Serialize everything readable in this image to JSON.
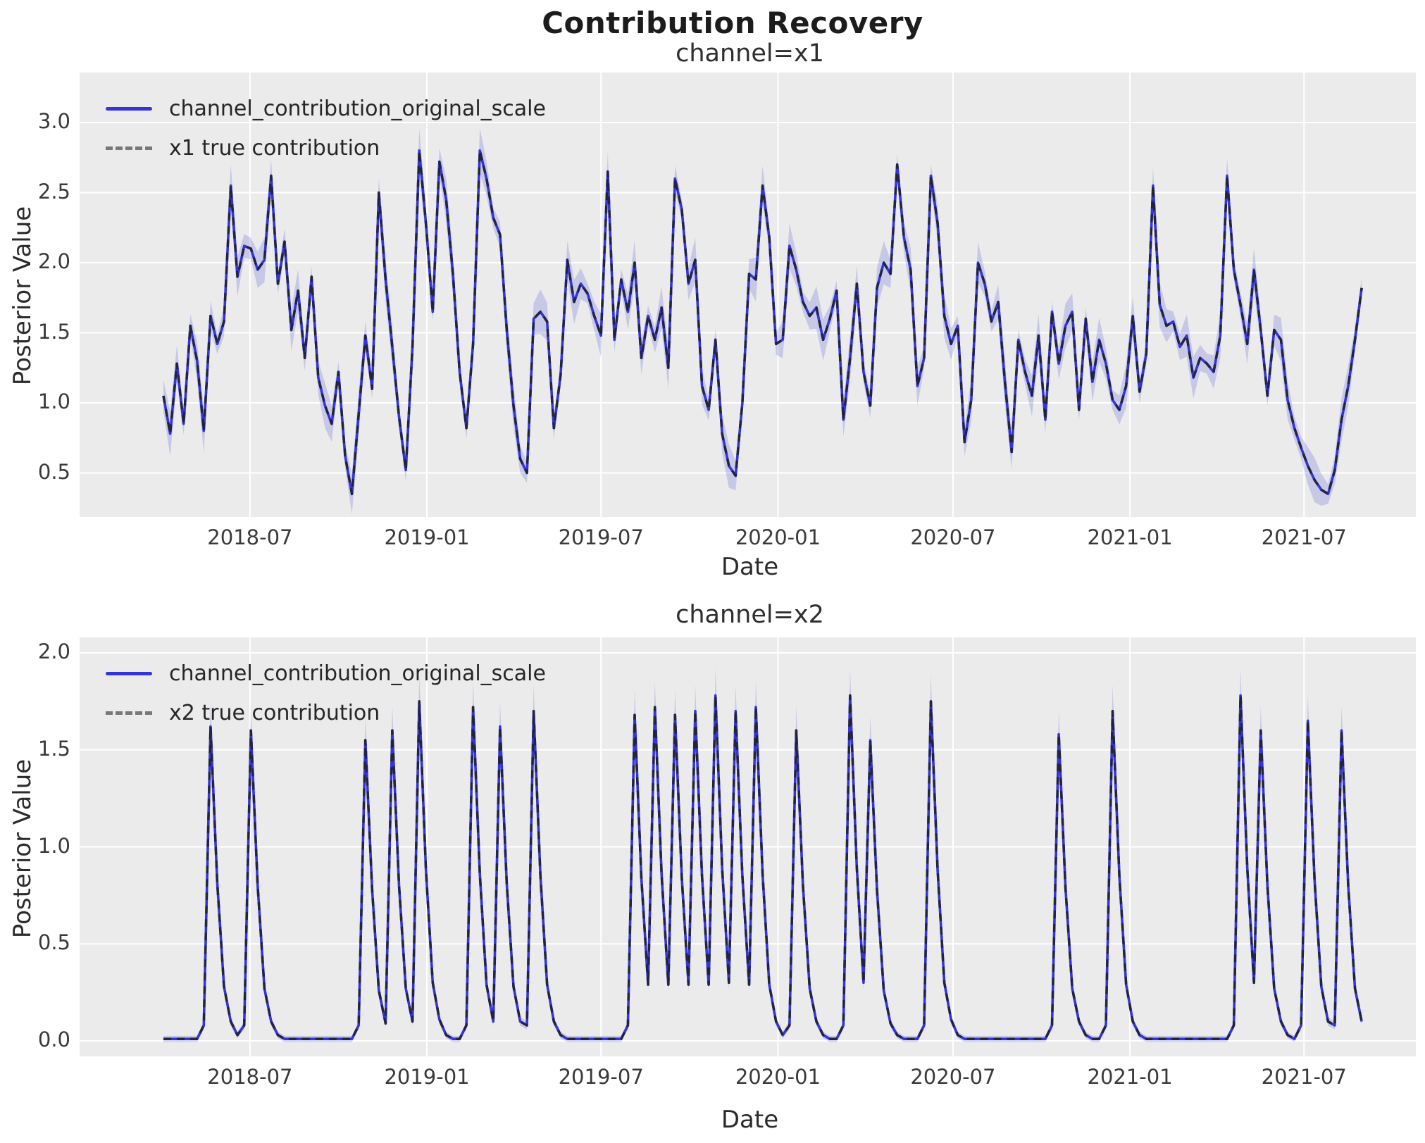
{
  "figure": {
    "title": "Contribution Recovery",
    "background": "#ffffff",
    "axes_background": "#ebebeb",
    "grid_color": "#ffffff"
  },
  "subplots": [
    {
      "subtitle": "channel=x1",
      "xlabel": "Date",
      "ylabel": "Posterior Value",
      "legend": [
        {
          "label": "channel_contribution_original_scale",
          "style": "solid",
          "color": "#3434dd"
        },
        {
          "label": "x1 true contribution",
          "style": "dashed",
          "color": "#787878"
        }
      ],
      "yticks": [
        "0.5",
        "1.0",
        "1.5",
        "2.0",
        "2.5",
        "3.0"
      ]
    },
    {
      "subtitle": "channel=x2",
      "xlabel": "Date",
      "ylabel": "Posterior Value",
      "legend": [
        {
          "label": "channel_contribution_original_scale",
          "style": "solid",
          "color": "#3434dd"
        },
        {
          "label": "x2 true contribution",
          "style": "dashed",
          "color": "#787878"
        }
      ],
      "yticks": [
        "0.0",
        "0.5",
        "1.0",
        "1.5",
        "2.0"
      ]
    }
  ],
  "xticks": [
    {
      "label": "2018-07",
      "week": 12.86
    },
    {
      "label": "2019-01",
      "week": 39.14
    },
    {
      "label": "2019-07",
      "week": 65.0
    },
    {
      "label": "2020-01",
      "week": 91.29
    },
    {
      "label": "2020-07",
      "week": 117.29
    },
    {
      "label": "2021-01",
      "week": 143.57
    },
    {
      "label": "2021-07",
      "week": 169.43
    }
  ],
  "chart_data": [
    {
      "type": "line",
      "title": "channel=x1",
      "xlabel": "Date",
      "ylabel": "Posterior Value",
      "x_start": "2018-04-02",
      "x_step_days": 7,
      "n": 179,
      "ylim": [
        0.07,
        3.35
      ],
      "yticks": [
        0.5,
        1.0,
        1.5,
        2.0,
        2.5,
        3.0
      ],
      "grid": true,
      "legend_position": "upper-left",
      "band": {
        "base": 0.07,
        "var": 0.09
      },
      "series": [
        {
          "name": "channel_contribution_original_scale",
          "color": "#3434dd",
          "style": "solid",
          "values": [
            1.05,
            0.78,
            1.28,
            0.85,
            1.55,
            1.3,
            0.8,
            1.62,
            1.42,
            1.58,
            2.55,
            1.9,
            2.12,
            2.1,
            1.95,
            2.02,
            2.62,
            1.85,
            2.15,
            1.52,
            1.8,
            1.32,
            1.9,
            1.18,
            0.98,
            0.85,
            1.22,
            0.62,
            0.35,
            0.92,
            1.48,
            1.1,
            2.5,
            1.88,
            1.4,
            0.9,
            0.52,
            1.4,
            2.8,
            2.28,
            1.65,
            2.72,
            2.45,
            1.92,
            1.22,
            0.82,
            1.42,
            2.8,
            2.6,
            2.32,
            2.2,
            1.52,
            0.98,
            0.6,
            0.5,
            1.6,
            1.65,
            1.58,
            0.82,
            1.2,
            2.02,
            1.72,
            1.85,
            1.78,
            1.62,
            1.48,
            2.65,
            1.45,
            1.88,
            1.65,
            2.0,
            1.32,
            1.62,
            1.45,
            1.68,
            1.25,
            2.6,
            2.38,
            1.85,
            2.02,
            1.12,
            0.95,
            1.45,
            0.78,
            0.55,
            0.48,
            1.0,
            1.92,
            1.88,
            2.55,
            2.18,
            1.42,
            1.45,
            2.12,
            1.95,
            1.72,
            1.62,
            1.68,
            1.45,
            1.6,
            1.8,
            0.88,
            1.32,
            1.85,
            1.22,
            0.98,
            1.82,
            2.0,
            1.92,
            2.7,
            2.18,
            1.95,
            1.12,
            1.32,
            2.62,
            2.28,
            1.62,
            1.42,
            1.55,
            0.72,
            1.02,
            2.0,
            1.85,
            1.58,
            1.72,
            1.15,
            0.65,
            1.45,
            1.22,
            1.05,
            1.48,
            0.88,
            1.65,
            1.28,
            1.55,
            1.65,
            0.95,
            1.6,
            1.15,
            1.45,
            1.28,
            1.02,
            0.95,
            1.12,
            1.62,
            1.08,
            1.35,
            2.55,
            1.7,
            1.55,
            1.58,
            1.4,
            1.48,
            1.18,
            1.32,
            1.28,
            1.22,
            1.48,
            2.62,
            1.95,
            1.7,
            1.42,
            1.95,
            1.52,
            1.05,
            1.52,
            1.45,
            1.02,
            0.82,
            0.68,
            0.55,
            0.45,
            0.38,
            0.35,
            0.52,
            0.88,
            1.12,
            1.45,
            1.82
          ]
        },
        {
          "name": "x1 true contribution",
          "color": "#787878",
          "style": "dashed",
          "values": "same"
        }
      ]
    },
    {
      "type": "line",
      "title": "channel=x2",
      "xlabel": "Date",
      "ylabel": "Posterior Value",
      "x_start": "2018-04-02",
      "x_step_days": 7,
      "n": 179,
      "ylim": [
        -0.08,
        2.08
      ],
      "yticks": [
        0.0,
        0.5,
        1.0,
        1.5,
        2.0
      ],
      "grid": true,
      "legend_position": "upper-left",
      "band": {
        "base": 0.015,
        "scale": 0.07
      },
      "series": [
        {
          "name": "channel_contribution_original_scale",
          "color": "#3434dd",
          "style": "solid",
          "values": [
            0.01,
            0.01,
            0.01,
            0.01,
            0.01,
            0.01,
            0.08,
            1.62,
            0.81,
            0.28,
            0.1,
            0.03,
            0.08,
            1.6,
            0.8,
            0.27,
            0.1,
            0.03,
            0.01,
            0.01,
            0.01,
            0.01,
            0.01,
            0.01,
            0.01,
            0.01,
            0.01,
            0.01,
            0.01,
            0.08,
            1.55,
            0.78,
            0.26,
            0.09,
            1.6,
            0.8,
            0.27,
            0.1,
            1.75,
            0.88,
            0.3,
            0.11,
            0.03,
            0.01,
            0.01,
            0.08,
            1.72,
            0.86,
            0.29,
            0.1,
            1.62,
            0.81,
            0.28,
            0.1,
            0.08,
            1.7,
            0.85,
            0.29,
            0.1,
            0.03,
            0.01,
            0.01,
            0.01,
            0.01,
            0.01,
            0.01,
            0.01,
            0.01,
            0.01,
            0.08,
            1.68,
            0.84,
            0.29,
            1.72,
            0.86,
            0.29,
            1.68,
            0.84,
            0.29,
            1.7,
            0.85,
            0.29,
            1.78,
            0.89,
            0.3,
            1.7,
            0.85,
            0.29,
            1.72,
            0.86,
            0.29,
            0.1,
            0.03,
            0.08,
            1.6,
            0.8,
            0.27,
            0.1,
            0.03,
            0.01,
            0.01,
            0.08,
            1.78,
            0.89,
            0.3,
            1.55,
            0.78,
            0.26,
            0.09,
            0.03,
            0.01,
            0.01,
            0.01,
            0.08,
            1.75,
            0.88,
            0.3,
            0.11,
            0.03,
            0.01,
            0.01,
            0.01,
            0.01,
            0.01,
            0.01,
            0.01,
            0.01,
            0.01,
            0.01,
            0.01,
            0.01,
            0.01,
            0.08,
            1.58,
            0.79,
            0.27,
            0.1,
            0.03,
            0.01,
            0.01,
            0.08,
            1.7,
            0.85,
            0.29,
            0.1,
            0.03,
            0.01,
            0.01,
            0.01,
            0.01,
            0.01,
            0.01,
            0.01,
            0.01,
            0.01,
            0.01,
            0.01,
            0.01,
            0.01,
            0.08,
            1.78,
            0.89,
            0.3,
            1.6,
            0.8,
            0.27,
            0.1,
            0.03,
            0.01,
            0.08,
            1.65,
            0.83,
            0.28,
            0.1,
            0.08,
            1.6,
            0.8,
            0.27,
            0.1
          ]
        },
        {
          "name": "x2 true contribution",
          "color": "#787878",
          "style": "dashed",
          "values": "same"
        }
      ]
    }
  ]
}
